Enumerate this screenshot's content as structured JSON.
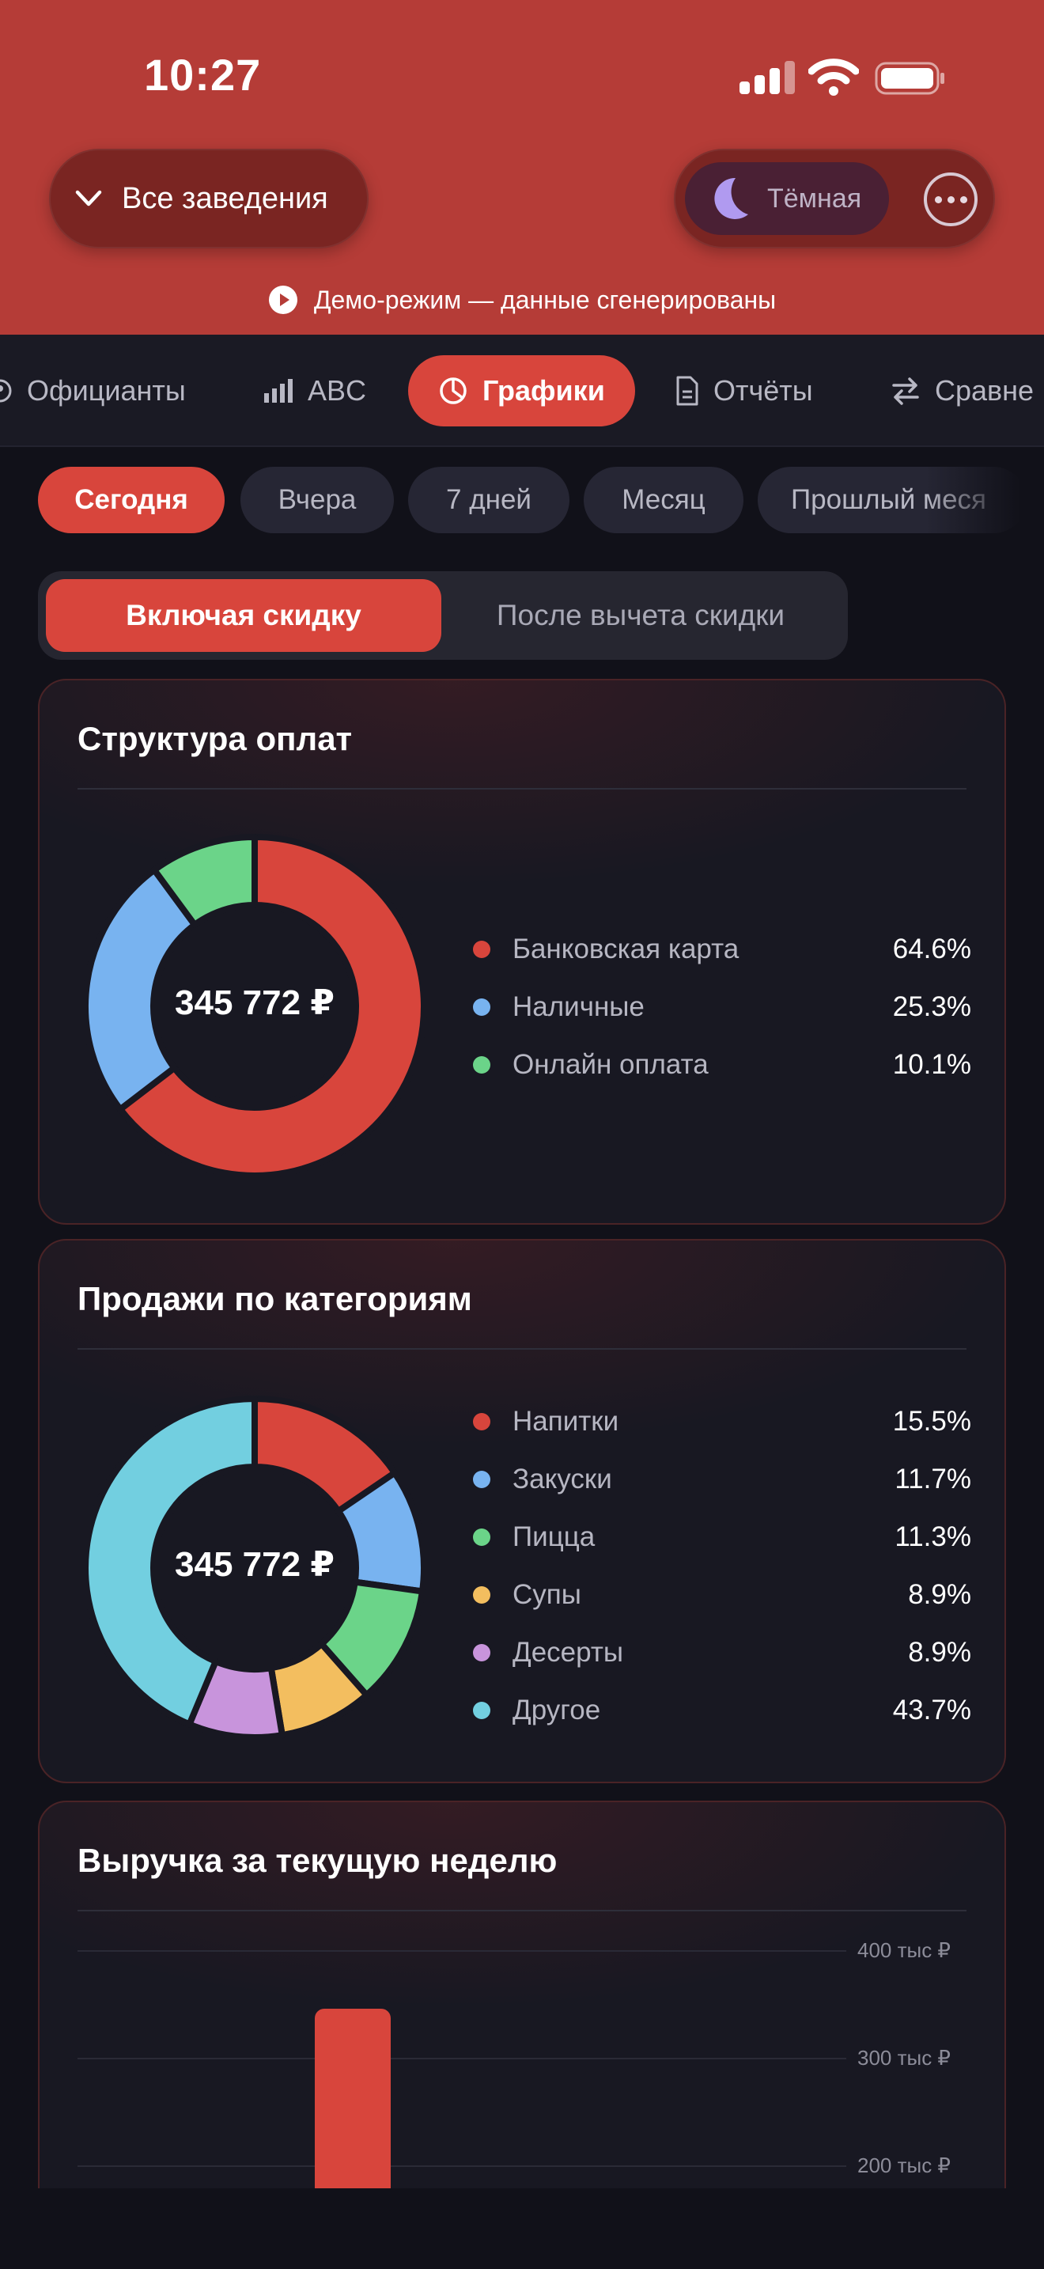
{
  "status_bar": {
    "time": "10:27"
  },
  "header": {
    "venue_selector": "Все заведения",
    "theme_toggle": "Тёмная",
    "demo_notice": "Демо-режим — данные сгенерированы",
    "accent_color": "#d8453c"
  },
  "tabs": [
    {
      "label": "Официанты",
      "icon": "waiters-icon",
      "active": false
    },
    {
      "label": "ABC",
      "icon": "bar-chart-icon",
      "active": false
    },
    {
      "label": "Графики",
      "icon": "pie-chart-icon",
      "active": true
    },
    {
      "label": "Отчёты",
      "icon": "document-icon",
      "active": false
    },
    {
      "label": "Сравне",
      "icon": "swap-icon",
      "active": false
    }
  ],
  "periods": [
    {
      "label": "Сегодня",
      "active": true
    },
    {
      "label": "Вчера",
      "active": false
    },
    {
      "label": "7 дней",
      "active": false
    },
    {
      "label": "Месяц",
      "active": false
    },
    {
      "label": "Прошлый меся",
      "active": false
    }
  ],
  "discount_toggle": {
    "options": [
      "Включая скидку",
      "После вычета скидки"
    ],
    "selected": "Включая скидку"
  },
  "payment_structure": {
    "title": "Структура оплат",
    "total": "345 772 ₽",
    "chart_data": {
      "type": "pie",
      "categories": [
        "Банковская карта",
        "Наличные",
        "Онлайн оплата"
      ],
      "values": [
        64.6,
        25.3,
        10.1
      ],
      "labels": [
        "64.6%",
        "25.3%",
        "10.1%"
      ],
      "colors": [
        "#d8453c",
        "#78b3f0",
        "#6bd489"
      ]
    }
  },
  "category_sales": {
    "title": "Продажи по категориям",
    "total": "345 772 ₽",
    "chart_data": {
      "type": "pie",
      "categories": [
        "Напитки",
        "Закуски",
        "Пицца",
        "Супы",
        "Десерты",
        "Другое"
      ],
      "values": [
        15.5,
        11.7,
        11.3,
        8.9,
        8.9,
        43.7
      ],
      "labels": [
        "15.5%",
        "11.7%",
        "11.3%",
        "8.9%",
        "8.9%",
        "43.7%"
      ],
      "colors": [
        "#d8453c",
        "#78b3f0",
        "#6bd489",
        "#f3be5f",
        "#c894dc",
        "#72cfe0"
      ]
    }
  },
  "weekly_revenue": {
    "title": "Выручка за текущую неделю",
    "chart_data": {
      "type": "bar",
      "y_ticks": [
        "400 тыс ₽",
        "300 тыс ₽",
        "200 тыс ₽"
      ],
      "y_tick_values": [
        400000,
        300000,
        200000
      ],
      "ylim": [
        0,
        400000
      ],
      "values": [
        345772
      ],
      "color": "#d8453c"
    }
  }
}
